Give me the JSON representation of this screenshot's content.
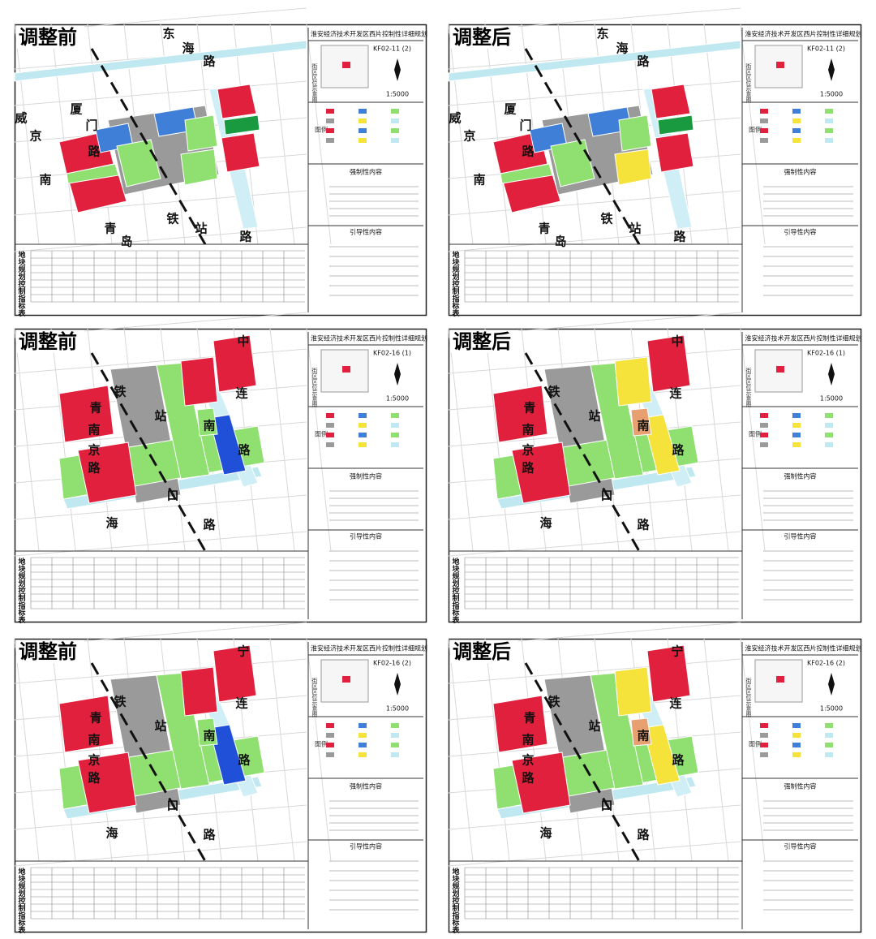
{
  "panels": [
    {
      "label": "调整前",
      "title": "淮安经济技术开发区西片控制性详细规划",
      "code": "KF02-11 (2)",
      "scale": "1:5000",
      "location_caption": "街区区位示意图",
      "legend_caption": "图例",
      "mandatory": "强制性内容",
      "guidance": "引导性内容",
      "table_caption": "地块规划控制指标表",
      "road_labels": [
        "东",
        "海",
        "路",
        "威",
        "京",
        "厦",
        "门",
        "路",
        "南",
        "青",
        "岛",
        "铁",
        "站",
        "路"
      ]
    },
    {
      "label": "调整后",
      "title": "淮安经济技术开发区西片控制性详细规划",
      "code": "KF02-11 (2)",
      "scale": "1:5000",
      "location_caption": "街区区位示意图",
      "legend_caption": "图例",
      "mandatory": "强制性内容",
      "guidance": "引导性内容",
      "table_caption": "地块规划控制指标表",
      "road_labels": [
        "东",
        "海",
        "路",
        "威",
        "京",
        "厦",
        "门",
        "路",
        "南",
        "青",
        "岛",
        "铁",
        "站",
        "路"
      ]
    },
    {
      "label": "调整前",
      "title": "淮安经济技术开发区西片控制性详细规划",
      "code": "KF02-16 (1)",
      "scale": "1:5000",
      "location_caption": "街区区位示意图",
      "legend_caption": "图例",
      "mandatory": "强制性内容",
      "guidance": "引导性内容",
      "table_caption": "地块规划控制指标表",
      "road_labels": [
        "青",
        "南",
        "京",
        "路",
        "铁",
        "站",
        "南",
        "路",
        "口",
        "路",
        "海",
        "连",
        "中"
      ]
    },
    {
      "label": "调整后",
      "title": "淮安经济技术开发区西片控制性详细规划",
      "code": "KF02-16 (1)",
      "scale": "1:5000",
      "location_caption": "街区区位示意图",
      "legend_caption": "图例",
      "mandatory": "强制性内容",
      "guidance": "引导性内容",
      "table_caption": "地块规划控制指标表",
      "road_labels": [
        "青",
        "南",
        "京",
        "路",
        "铁",
        "站",
        "南",
        "路",
        "口",
        "路",
        "海",
        "连",
        "中"
      ]
    },
    {
      "label": "调整前",
      "title": "淮安经济技术开发区西片控制性详细规划",
      "code": "KF02-16 (2)",
      "scale": "1:5000",
      "location_caption": "街区区位示意图",
      "legend_caption": "图例",
      "mandatory": "强制性内容",
      "guidance": "引导性内容",
      "table_caption": "地块规划控制指标表",
      "road_labels": [
        "青",
        "南",
        "京",
        "路",
        "铁",
        "站",
        "南",
        "路",
        "口",
        "路",
        "海",
        "连",
        "宁"
      ]
    },
    {
      "label": "调整后",
      "title": "淮安经济技术开发区西片控制性详细规划",
      "code": "KF02-16 (2)",
      "scale": "1:5000",
      "location_caption": "街区区位示意图",
      "legend_caption": "图例",
      "mandatory": "强制性内容",
      "guidance": "引导性内容",
      "table_caption": "地块规划控制指标表",
      "road_labels": [
        "青",
        "南",
        "京",
        "路",
        "铁",
        "站",
        "南",
        "路",
        "口",
        "路",
        "海",
        "连",
        "宁"
      ]
    }
  ]
}
